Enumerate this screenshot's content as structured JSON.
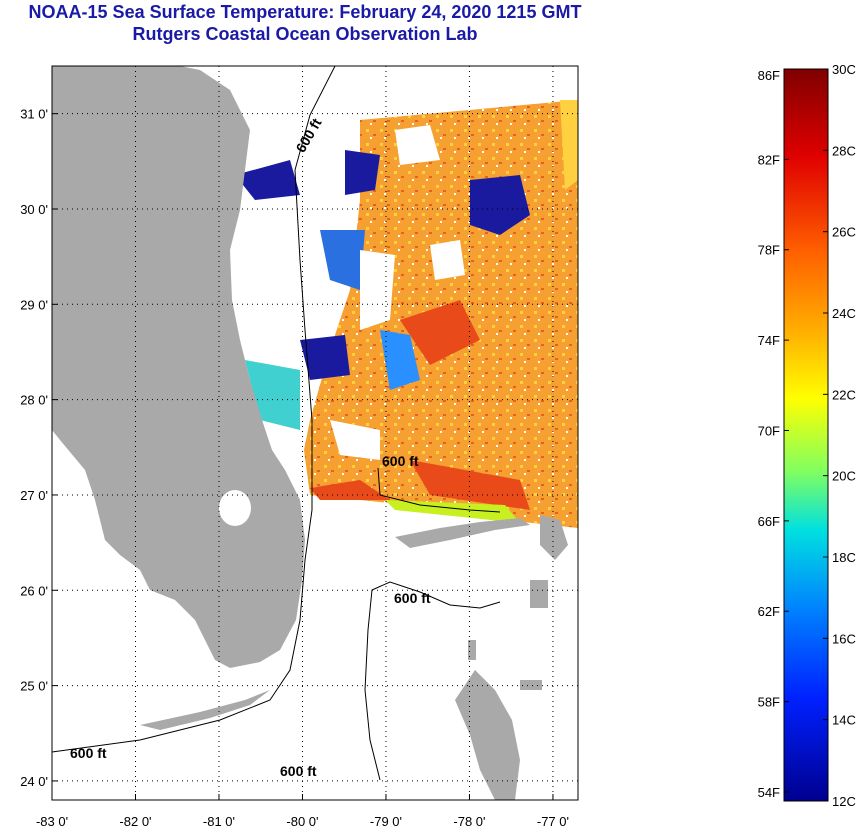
{
  "header": {
    "title": "NOAA-15 Sea Surface Temperature:  February 24, 2020 1215 GMT",
    "subtitle": "Rutgers Coastal Ocean Observation Lab"
  },
  "map": {
    "lon_ticks": [
      "-83 0'",
      "-82 0'",
      "-81 0'",
      "-80 0'",
      "-79 0'",
      "-78 0'",
      "-77 0'"
    ],
    "lat_ticks": [
      "31 0'",
      "30 0'",
      "29 0'",
      "28 0'",
      "27 0'",
      "26 0'",
      "25 0'",
      "24 0'"
    ],
    "lon_range": [
      -83,
      -76.7
    ],
    "lat_range": [
      23.8,
      31.5
    ],
    "grid": true,
    "contour_label": "600 ft",
    "colors": {
      "land": "#a9a9a9",
      "cloud_no_data": "#ffffff",
      "warm": "#f59a28",
      "cool": "#1a1a9e"
    }
  },
  "colorbar": {
    "left_labels": [
      "86F",
      "82F",
      "78F",
      "74F",
      "70F",
      "66F",
      "62F",
      "58F",
      "54F"
    ],
    "right_labels": [
      "30C",
      "28C",
      "26C",
      "24C",
      "22C",
      "20C",
      "18C",
      "16C",
      "14C",
      "12C"
    ],
    "range_c": [
      12,
      30
    ],
    "colors": [
      "#800000",
      "#ff0000",
      "#ff8000",
      "#ffff00",
      "#80ff80",
      "#00ffff",
      "#0080ff",
      "#0000ff",
      "#00008f"
    ]
  }
}
